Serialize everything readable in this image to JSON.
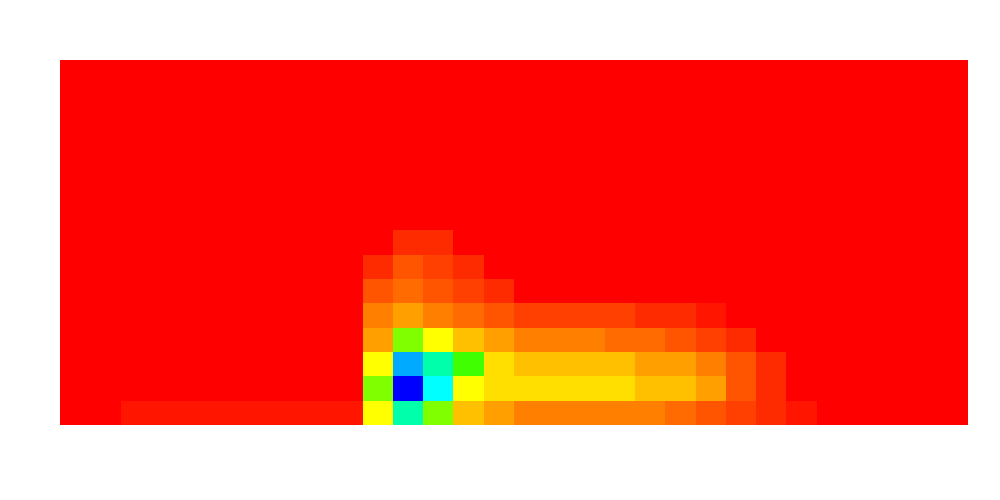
{
  "chart_data": {
    "type": "heatmap",
    "tick_labels": false,
    "zlim": [
      0,
      10
    ],
    "cells": [
      [
        0,
        0,
        0,
        0,
        0,
        0,
        0,
        0,
        0,
        0,
        0,
        0,
        0,
        0,
        0,
        0,
        0,
        0,
        0,
        0,
        0,
        0,
        0,
        0,
        0,
        0,
        0,
        0,
        0,
        0
      ],
      [
        0,
        0,
        0,
        0,
        0,
        0,
        0,
        0,
        0,
        0,
        0,
        0,
        0,
        0,
        0,
        0,
        0,
        0,
        0,
        0,
        0,
        0,
        0,
        0,
        0,
        0,
        0,
        0,
        0,
        0
      ],
      [
        0,
        0,
        0,
        0,
        0,
        0,
        0,
        0,
        0,
        0,
        0,
        0,
        0,
        0,
        0,
        0,
        0,
        0,
        0,
        0,
        0,
        0,
        0,
        0,
        0,
        0,
        0,
        0,
        0,
        0
      ],
      [
        0,
        0,
        0,
        0,
        0,
        0,
        0,
        0,
        0,
        0,
        0,
        0,
        0,
        0,
        0,
        0,
        0,
        0,
        0,
        0,
        0,
        0,
        0,
        0,
        0,
        0,
        0,
        0,
        0,
        0
      ],
      [
        0,
        0,
        0,
        0,
        0,
        0,
        0,
        0,
        0,
        0,
        0,
        0,
        0,
        0,
        0,
        0,
        0,
        0,
        0,
        0,
        0,
        0,
        0,
        0,
        0,
        0,
        0,
        0,
        0,
        0
      ],
      [
        0,
        0,
        0,
        0,
        0,
        0,
        0,
        0,
        0,
        0,
        0,
        0,
        0,
        0,
        0,
        0,
        0,
        0,
        0,
        0,
        0,
        0,
        0,
        0,
        0,
        0,
        0,
        0,
        0,
        0
      ],
      [
        0,
        0,
        0,
        0,
        0,
        0,
        0,
        0,
        0,
        0,
        0,
        0,
        0,
        0,
        0,
        0,
        0,
        0,
        0,
        0,
        0,
        0,
        0,
        0,
        0,
        0,
        0,
        0,
        0,
        0
      ],
      [
        0,
        0,
        0,
        0,
        0,
        0,
        0,
        0,
        0,
        0,
        0,
        1,
        1,
        0,
        0,
        0,
        0,
        0,
        0,
        0,
        0,
        0,
        0,
        0,
        0,
        0,
        0,
        0,
        0,
        0
      ],
      [
        0,
        0,
        0,
        0,
        0,
        0,
        0,
        0,
        0,
        0,
        1,
        2,
        1.5,
        1,
        0,
        0,
        0,
        0,
        0,
        0,
        0,
        0,
        0,
        0,
        0,
        0,
        0,
        0,
        0,
        0
      ],
      [
        0,
        0,
        0,
        0,
        0,
        0,
        0,
        0,
        0,
        0,
        2,
        2.5,
        2,
        1.5,
        1,
        0,
        0,
        0,
        0,
        0,
        0,
        0,
        0,
        0,
        0,
        0,
        0,
        0,
        0,
        0
      ],
      [
        0,
        0,
        0,
        0,
        0,
        0,
        0,
        0,
        0,
        0,
        3,
        3.5,
        3,
        2.5,
        2,
        1.5,
        1.5,
        1.5,
        1.5,
        1,
        1,
        0.5,
        0,
        0,
        0,
        0,
        0,
        0,
        0,
        0
      ],
      [
        0,
        0,
        0,
        0,
        0,
        0,
        0,
        0,
        0,
        0,
        3.5,
        6,
        5,
        4,
        3.5,
        3,
        3,
        3,
        2.5,
        2.5,
        2,
        1.5,
        1,
        0,
        0,
        0,
        0,
        0,
        0,
        0
      ],
      [
        0,
        0,
        0,
        0,
        0,
        0,
        0,
        0,
        0,
        0,
        5,
        9,
        8,
        6.5,
        4.5,
        4,
        4,
        4,
        4,
        3.5,
        3.5,
        3,
        2,
        1,
        0,
        0,
        0,
        0,
        0,
        0
      ],
      [
        0,
        0,
        0,
        0,
        0,
        0,
        0,
        0,
        0,
        0,
        6,
        10,
        8.5,
        5,
        4.5,
        4.5,
        4.5,
        4.5,
        4.5,
        4,
        4,
        3.5,
        2,
        1,
        0,
        0,
        0,
        0,
        0,
        0
      ],
      [
        0,
        0,
        0.5,
        0.5,
        0.5,
        0.5,
        0.5,
        0.5,
        0.5,
        0.5,
        5,
        8,
        6,
        4,
        3.5,
        3,
        3,
        3,
        3,
        3,
        2.5,
        2,
        1.5,
        1,
        0.5,
        0,
        0,
        0,
        0,
        0
      ]
    ]
  }
}
